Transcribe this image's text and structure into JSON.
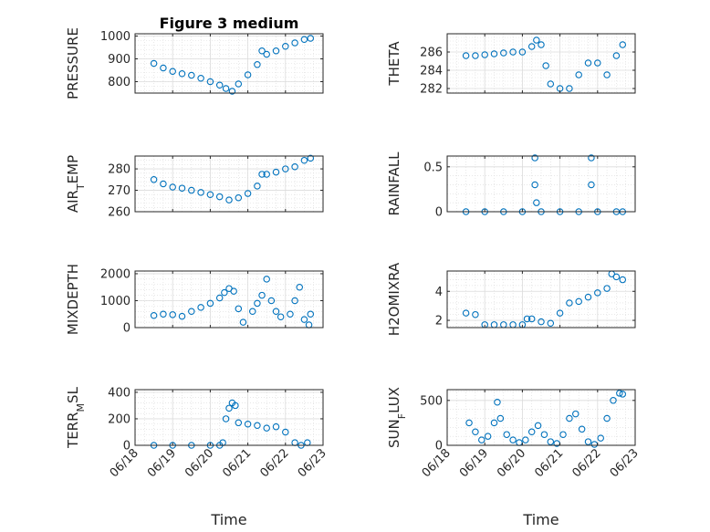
{
  "figure": {
    "title": "Figure 3 medium",
    "xlabel": "Time",
    "x_ticks": [
      "06/18",
      "06/19",
      "06/20",
      "06/21",
      "06/22",
      "06/23"
    ]
  },
  "chart_data": [
    {
      "type": "scatter",
      "ylabel": "PRESSURE",
      "ylim": [
        750,
        1010
      ],
      "yticks": [
        800,
        900,
        1000
      ],
      "xlim": [
        "06/18",
        "06/23"
      ],
      "grid": true,
      "x": [
        "06/18 12:00",
        "06/18 18:00",
        "06/19 00:00",
        "06/19 06:00",
        "06/19 12:00",
        "06/19 18:00",
        "06/20 00:00",
        "06/20 06:00",
        "06/20 10:00",
        "06/20 14:00",
        "06/20 18:00",
        "06/21 00:00",
        "06/21 06:00",
        "06/21 09:00",
        "06/21 12:00",
        "06/21 18:00",
        "06/22 00:00",
        "06/22 06:00",
        "06/22 12:00",
        "06/22 16:00"
      ],
      "y": [
        880,
        860,
        845,
        835,
        828,
        815,
        800,
        785,
        770,
        758,
        790,
        830,
        875,
        935,
        920,
        935,
        955,
        970,
        985,
        990
      ]
    },
    {
      "type": "scatter",
      "ylabel": "THETA",
      "ylim": [
        281.5,
        288
      ],
      "yticks": [
        282,
        284,
        286
      ],
      "xlim": [
        "06/18",
        "06/23"
      ],
      "grid": true,
      "x": [
        "06/18 12:00",
        "06/18 18:00",
        "06/19 00:00",
        "06/19 06:00",
        "06/19 12:00",
        "06/19 18:00",
        "06/20 00:00",
        "06/20 06:00",
        "06/20 09:00",
        "06/20 12:00",
        "06/20 15:00",
        "06/20 18:00",
        "06/21 00:00",
        "06/21 06:00",
        "06/21 12:00",
        "06/21 18:00",
        "06/22 00:00",
        "06/22 06:00",
        "06/22 12:00",
        "06/22 16:00"
      ],
      "y": [
        285.6,
        285.6,
        285.7,
        285.8,
        285.9,
        286.0,
        286.0,
        286.6,
        287.3,
        286.8,
        284.5,
        282.5,
        282.0,
        282.0,
        283.5,
        284.8,
        284.8,
        283.5,
        285.6,
        286.8
      ]
    },
    {
      "type": "scatter",
      "ylabel": "AIR_TEMP",
      "ylim": [
        260,
        286
      ],
      "yticks": [
        260,
        270,
        280
      ],
      "xlim": [
        "06/18",
        "06/23"
      ],
      "grid": true,
      "x": [
        "06/18 12:00",
        "06/18 18:00",
        "06/19 00:00",
        "06/19 06:00",
        "06/19 12:00",
        "06/19 18:00",
        "06/20 00:00",
        "06/20 06:00",
        "06/20 12:00",
        "06/20 18:00",
        "06/21 00:00",
        "06/21 06:00",
        "06/21 09:00",
        "06/21 12:00",
        "06/21 18:00",
        "06/22 00:00",
        "06/22 06:00",
        "06/22 12:00",
        "06/22 16:00"
      ],
      "y": [
        275,
        273,
        271.5,
        271,
        270,
        269,
        268,
        267,
        265.5,
        266.5,
        268.5,
        272,
        277.5,
        277.5,
        278.5,
        280,
        281,
        284,
        285
      ]
    },
    {
      "type": "scatter",
      "ylabel": "RAINFALL",
      "ylim": [
        0,
        0.62
      ],
      "yticks": [
        0,
        0.5
      ],
      "ytick_labels": [
        "0",
        "0.5"
      ],
      "xlim": [
        "06/18",
        "06/23"
      ],
      "grid": true,
      "x": [
        "06/18 12:00",
        "06/19 00:00",
        "06/19 12:00",
        "06/20 00:00",
        "06/20 12:00",
        "06/21 00:00",
        "06/21 12:00",
        "06/22 00:00",
        "06/22 12:00",
        "06/22 16:00",
        "06/20 08:00",
        "06/20 08:00",
        "06/20 09:00",
        "06/21 20:00",
        "06/21 20:00"
      ],
      "y": [
        0,
        0,
        0,
        0,
        0,
        0,
        0,
        0,
        0,
        0,
        0.6,
        0.3,
        0.1,
        0.6,
        0.3
      ]
    },
    {
      "type": "scatter",
      "ylabel": "MIXDEPTH",
      "ylim": [
        0,
        2100
      ],
      "yticks": [
        0,
        1000,
        2000
      ],
      "xlim": [
        "06/18",
        "06/23"
      ],
      "grid": true,
      "x": [
        "06/18 12:00",
        "06/18 18:00",
        "06/19 00:00",
        "06/19 06:00",
        "06/19 12:00",
        "06/19 18:00",
        "06/20 00:00",
        "06/20 06:00",
        "06/20 09:00",
        "06/20 12:00",
        "06/20 15:00",
        "06/20 18:00",
        "06/20 21:00",
        "06/21 03:00",
        "06/21 06:00",
        "06/21 09:00",
        "06/21 12:00",
        "06/21 15:00",
        "06/21 18:00",
        "06/21 21:00",
        "06/22 03:00",
        "06/22 06:00",
        "06/22 09:00",
        "06/22 12:00",
        "06/22 15:00",
        "06/22 16:00"
      ],
      "y": [
        450,
        500,
        480,
        420,
        600,
        750,
        900,
        1100,
        1300,
        1450,
        1350,
        700,
        200,
        600,
        900,
        1200,
        1800,
        1000,
        600,
        400,
        500,
        1000,
        1500,
        300,
        100,
        500
      ]
    },
    {
      "type": "scatter",
      "ylabel": "H2OMIXRA",
      "ylim": [
        1.5,
        5.4
      ],
      "yticks": [
        2,
        4
      ],
      "xlim": [
        "06/18",
        "06/23"
      ],
      "grid": true,
      "x": [
        "06/18 12:00",
        "06/18 18:00",
        "06/19 00:00",
        "06/19 06:00",
        "06/19 12:00",
        "06/19 18:00",
        "06/20 00:00",
        "06/20 03:00",
        "06/20 06:00",
        "06/20 12:00",
        "06/20 18:00",
        "06/21 00:00",
        "06/21 06:00",
        "06/21 12:00",
        "06/21 18:00",
        "06/22 00:00",
        "06/22 06:00",
        "06/22 09:00",
        "06/22 12:00",
        "06/22 16:00"
      ],
      "y": [
        2.5,
        2.4,
        1.7,
        1.7,
        1.7,
        1.7,
        1.7,
        2.1,
        2.1,
        1.9,
        1.8,
        2.5,
        3.2,
        3.3,
        3.6,
        3.9,
        4.2,
        5.2,
        5.0,
        4.8
      ]
    },
    {
      "type": "scatter",
      "ylabel": "TERR_MSL",
      "ylim": [
        0,
        420
      ],
      "yticks": [
        0,
        200,
        400
      ],
      "xlim": [
        "06/18",
        "06/23"
      ],
      "grid": true,
      "x": [
        "06/18 12:00",
        "06/19 00:00",
        "06/19 12:00",
        "06/20 00:00",
        "06/20 06:00",
        "06/20 08:00",
        "06/20 10:00",
        "06/20 12:00",
        "06/20 14:00",
        "06/20 16:00",
        "06/20 18:00",
        "06/21 00:00",
        "06/21 06:00",
        "06/21 12:00",
        "06/21 18:00",
        "06/22 00:00",
        "06/22 06:00",
        "06/22 10:00",
        "06/22 14:00"
      ],
      "y": [
        0,
        0,
        0,
        0,
        0,
        20,
        200,
        280,
        320,
        300,
        170,
        160,
        150,
        130,
        140,
        100,
        20,
        0,
        20
      ]
    },
    {
      "type": "scatter",
      "ylabel": "SUN_FLUX",
      "ylim": [
        0,
        620
      ],
      "yticks": [
        0,
        500
      ],
      "xlim": [
        "06/18",
        "06/23"
      ],
      "grid": true,
      "x": [
        "06/18 14:00",
        "06/18 18:00",
        "06/18 22:00",
        "06/19 02:00",
        "06/19 06:00",
        "06/19 08:00",
        "06/19 10:00",
        "06/19 14:00",
        "06/19 18:00",
        "06/19 22:00",
        "06/20 02:00",
        "06/20 06:00",
        "06/20 10:00",
        "06/20 14:00",
        "06/20 18:00",
        "06/20 22:00",
        "06/21 02:00",
        "06/21 06:00",
        "06/21 10:00",
        "06/21 14:00",
        "06/21 18:00",
        "06/21 22:00",
        "06/22 02:00",
        "06/22 06:00",
        "06/22 10:00",
        "06/22 14:00",
        "06/22 16:00"
      ],
      "y": [
        250,
        150,
        60,
        100,
        250,
        480,
        300,
        120,
        60,
        30,
        60,
        150,
        220,
        120,
        40,
        20,
        120,
        300,
        350,
        180,
        40,
        10,
        80,
        300,
        500,
        580,
        570
      ]
    }
  ]
}
